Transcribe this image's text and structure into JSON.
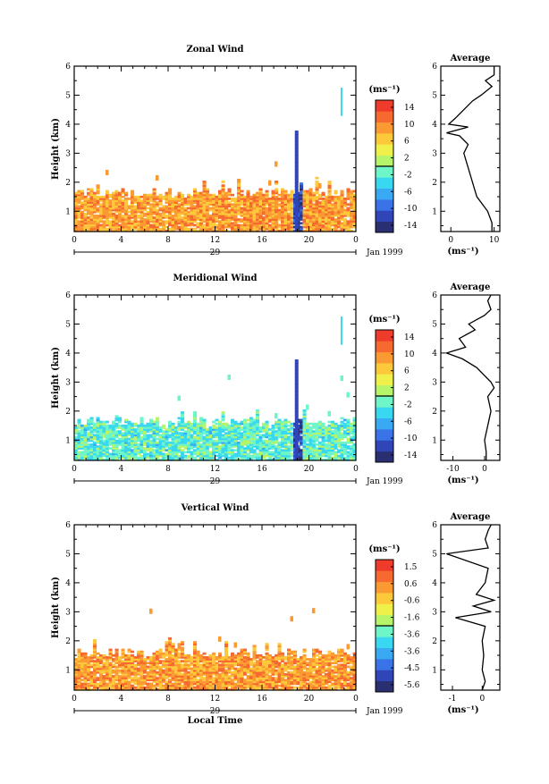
{
  "panels": [
    {
      "title": "Zonal Wind",
      "ylabel": "Height (km)",
      "x_ticks": [
        "0",
        "4",
        "8",
        "12",
        "16",
        "20",
        "0"
      ],
      "y_ticks": [
        "1",
        "2",
        "3",
        "4",
        "5",
        "6"
      ],
      "date_day": "29",
      "date_label": "Jan 1999",
      "colorbar_unit": "(ms⁻¹)",
      "colorbar_ticks": [
        "14",
        "10",
        "6",
        "2",
        "-2",
        "-6",
        "-10",
        "-14"
      ],
      "avg_title": "Average",
      "avg_xticks": [
        "0",
        "10"
      ],
      "avg_xlabel": "(ms⁻¹)"
    },
    {
      "title": "Meridional Wind",
      "ylabel": "Height (km)",
      "x_ticks": [
        "0",
        "4",
        "8",
        "12",
        "16",
        "20",
        "0"
      ],
      "y_ticks": [
        "1",
        "2",
        "3",
        "4",
        "5",
        "6"
      ],
      "date_day": "29",
      "date_label": "Jan 1999",
      "colorbar_unit": "(ms⁻¹)",
      "colorbar_ticks": [
        "14",
        "10",
        "6",
        "2",
        "-2",
        "-6",
        "-10",
        "-14"
      ],
      "avg_title": "Average",
      "avg_xticks": [
        "-10",
        "0"
      ],
      "avg_xlabel": "(ms⁻¹)"
    },
    {
      "title": "Vertical Wind",
      "ylabel": "Height (km)",
      "x_ticks": [
        "0",
        "4",
        "8",
        "12",
        "16",
        "20",
        "0"
      ],
      "y_ticks": [
        "1",
        "2",
        "3",
        "4",
        "5",
        "6"
      ],
      "date_day": "29",
      "date_label": "Jan 1999",
      "colorbar_unit": "(ms⁻¹)",
      "colorbar_ticks": [
        "1.5",
        "0.6",
        "-0.6",
        "-1.6",
        "-3.6",
        "-3.6",
        "-4.5",
        "-5.6"
      ],
      "avg_title": "Average",
      "avg_xticks": [
        "-1",
        "0"
      ],
      "avg_xlabel": "(ms⁻¹)",
      "xlabel": "Local Time"
    }
  ],
  "colors": {
    "scale": [
      "#2a2f72",
      "#2f45b8",
      "#3a73e8",
      "#38a9f2",
      "#39d8f0",
      "#6ef5c8",
      "#b6f56a",
      "#f0f04a",
      "#fcc93a",
      "#fb9a32",
      "#f66a30",
      "#ee3b2c"
    ]
  },
  "chart_data": [
    {
      "type": "heatmap",
      "title": "Zonal Wind",
      "ylabel": "Height (km)",
      "x_range_hours": [
        0,
        24
      ],
      "y_range_km": [
        0.3,
        6
      ],
      "value_range_ms": [
        -16,
        16
      ],
      "typical_value_ms": 9,
      "data_top_km": 1.6,
      "negative_event_hours": [
        18.6,
        19.3
      ],
      "average_profile": {
        "heights_km": [
          0.3,
          0.6,
          1.0,
          1.5,
          2.0,
          2.5,
          3.0,
          3.3,
          3.6,
          3.7,
          3.9,
          4.0,
          4.2,
          4.5,
          4.8,
          5.0,
          5.3,
          5.5,
          5.7,
          6.0
        ],
        "values_ms": [
          9.5,
          9.5,
          8.5,
          6.0,
          5.0,
          4.0,
          3.0,
          4.0,
          2.0,
          -1.0,
          4.0,
          -0.5,
          1.0,
          3.0,
          5.0,
          7.0,
          9.5,
          8.0,
          10.0,
          10.0
        ]
      }
    },
    {
      "type": "heatmap",
      "title": "Meridional Wind",
      "ylabel": "Height (km)",
      "x_range_hours": [
        0,
        24
      ],
      "y_range_km": [
        0.3,
        6
      ],
      "value_range_ms": [
        -16,
        16
      ],
      "typical_value_ms": -2,
      "data_top_km": 1.6,
      "negative_event_hours": [
        18.6,
        19.3
      ],
      "average_profile": {
        "heights_km": [
          0.3,
          0.6,
          1.0,
          1.5,
          2.0,
          2.5,
          2.8,
          3.0,
          3.5,
          3.8,
          4.0,
          4.2,
          4.5,
          4.8,
          5.0,
          5.3,
          5.5,
          5.8,
          6.0
        ],
        "values_ms": [
          0.5,
          0.5,
          0.0,
          1.0,
          2.0,
          1.0,
          3.0,
          2.0,
          -2.5,
          -7.0,
          -12.0,
          -6.0,
          -8.0,
          -3.0,
          -5.0,
          0.0,
          2.0,
          1.0,
          2.0
        ]
      }
    },
    {
      "type": "heatmap",
      "title": "Vertical Wind",
      "ylabel": "Height (km)",
      "xlabel": "Local Time",
      "x_range_hours": [
        0,
        24
      ],
      "y_range_km": [
        0.3,
        6
      ],
      "value_range_ms": [
        -6,
        2
      ],
      "typical_value_ms": 0.3,
      "data_top_km": 1.55,
      "average_profile": {
        "heights_km": [
          0.3,
          0.6,
          1.0,
          1.5,
          2.0,
          2.5,
          2.8,
          3.0,
          3.2,
          3.4,
          3.6,
          4.0,
          4.5,
          5.0,
          5.2,
          5.5,
          5.8,
          6.0
        ],
        "values_ms": [
          0.0,
          0.1,
          0.0,
          0.05,
          0.0,
          0.1,
          -0.9,
          0.3,
          -0.3,
          0.4,
          -0.2,
          0.1,
          0.2,
          -1.2,
          0.2,
          0.1,
          0.2,
          0.3
        ]
      }
    }
  ]
}
